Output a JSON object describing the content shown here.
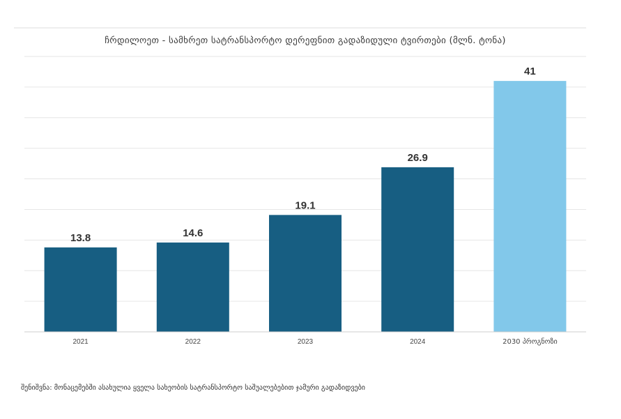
{
  "chart_data": {
    "type": "bar",
    "title": "ჩრდილოეთ - სამხრეთ სატრანსპორტო დერეფნით გადაზიდული ტვირთები (მლნ. ტონა)",
    "xlabel": "",
    "ylabel": "",
    "categories": [
      "2021",
      "2022",
      "2023",
      "2024",
      "2030 პროგნოზი"
    ],
    "values": [
      13.8,
      14.6,
      19.1,
      26.9,
      41
    ],
    "value_labels": [
      "13.8",
      "14.6",
      "19.1",
      "26.9",
      "41"
    ],
    "ylim": [
      0,
      45
    ],
    "grid": true,
    "legend": "none",
    "colors": {
      "actual": "#175e82",
      "forecast": "#82c8ea",
      "grid": "#e6e6e6",
      "axis": "#cccccc"
    }
  },
  "footnote": "შენიშვნა: მონაცემებში ასახულია ყველა სახეობის სატრანსპორტო საშუალებებით ჯამური გადაზიდვები"
}
